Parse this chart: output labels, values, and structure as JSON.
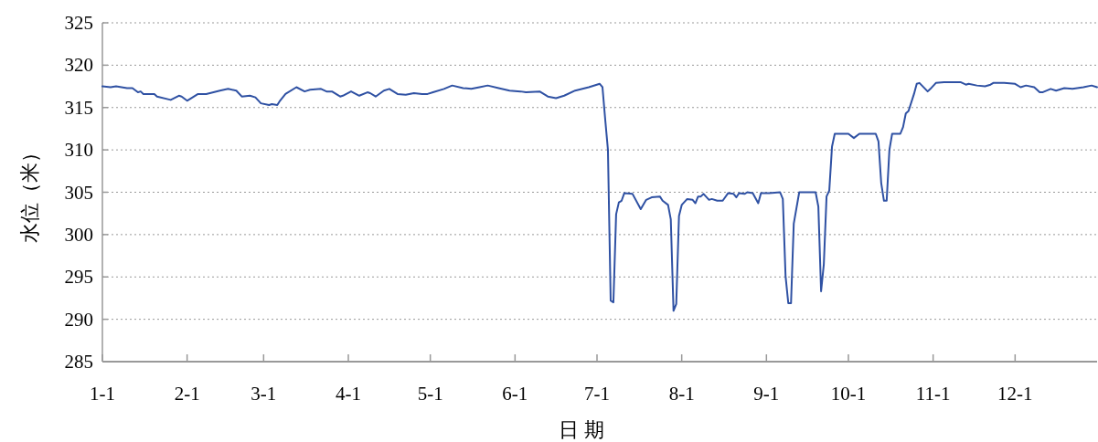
{
  "chart_data": {
    "type": "line",
    "xlabel": "日 期",
    "ylabel": "水位（米）",
    "color": "#2f51a3",
    "line_style": "solid",
    "grid": "y",
    "xlim": [
      "--01-01",
      "--12-31"
    ],
    "ylim": [
      285,
      325
    ],
    "yticks": [
      285,
      290,
      295,
      300,
      305,
      310,
      315,
      320,
      325
    ],
    "xticks": [
      {
        "value": "--01-01",
        "label": "1-1"
      },
      {
        "value": "--02-01",
        "label": "2-1"
      },
      {
        "value": "--03-01",
        "label": "3-1"
      },
      {
        "value": "--04-01",
        "label": "4-1"
      },
      {
        "value": "--05-01",
        "label": "5-1"
      },
      {
        "value": "--06-01",
        "label": "6-1"
      },
      {
        "value": "--07-01",
        "label": "7-1"
      },
      {
        "value": "--08-01",
        "label": "8-1"
      },
      {
        "value": "--09-01",
        "label": "9-1"
      },
      {
        "value": "--10-01",
        "label": "10-1"
      },
      {
        "value": "--11-01",
        "label": "11-1"
      },
      {
        "value": "--12-01",
        "label": "12-1"
      }
    ],
    "x": [
      "--01-01",
      "--01-04",
      "--01-06",
      "--01-10",
      "--01-12",
      "--01-14",
      "--01-15",
      "--01-16",
      "--01-20",
      "--01-21",
      "--01-26",
      "--01-29",
      "--01-30",
      "--02-01",
      "--02-05",
      "--02-08",
      "--02-13",
      "--02-16",
      "--02-19",
      "--02-21",
      "--02-24",
      "--02-26",
      "--02-28",
      "--03-03",
      "--03-04",
      "--03-06",
      "--03-07",
      "--03-09",
      "--03-13",
      "--03-16",
      "--03-18",
      "--03-22",
      "--03-24",
      "--03-26",
      "--03-29",
      "--03-30",
      "--04-02",
      "--04-05",
      "--04-08",
      "--04-09",
      "--04-11",
      "--04-14",
      "--04-16",
      "--04-19",
      "--04-22",
      "--04-25",
      "--04-28",
      "--04-30",
      "--05-02",
      "--05-06",
      "--05-09",
      "--05-13",
      "--05-16",
      "--05-19",
      "--05-22",
      "--05-26",
      "--05-30",
      "--06-03",
      "--06-05",
      "--06-10",
      "--06-13",
      "--06-16",
      "--06-19",
      "--06-23",
      "--06-28",
      "--07-02",
      "--07-03",
      "--07-04",
      "--07-05",
      "--07-06",
      "--07-07",
      "--07-08",
      "--07-09",
      "--07-10",
      "--07-11",
      "--07-14",
      "--07-17",
      "--07-19",
      "--07-21",
      "--07-24",
      "--07-25",
      "--07-27",
      "--07-28",
      "--07-29",
      "--07-30",
      "--07-31",
      "--08-01",
      "--08-03",
      "--08-05",
      "--08-06",
      "--08-07",
      "--08-08",
      "--08-09",
      "--08-11",
      "--08-12",
      "--08-14",
      "--08-16",
      "--08-18",
      "--08-20",
      "--08-21",
      "--08-22",
      "--08-24",
      "--08-25",
      "--08-27",
      "--08-29",
      "--08-30",
      "--09-02",
      "--09-06",
      "--09-07",
      "--09-08",
      "--09-09",
      "--09-10",
      "--09-11",
      "--09-13",
      "--09-19",
      "--09-20",
      "--09-21",
      "--09-22",
      "--09-23",
      "--09-24",
      "--09-25",
      "--09-26",
      "--10-01",
      "--10-03",
      "--10-05",
      "--10-11",
      "--10-12",
      "--10-13",
      "--10-14",
      "--10-15",
      "--10-16",
      "--10-17",
      "--10-20",
      "--10-21",
      "--10-22",
      "--10-23",
      "--10-25",
      "--10-26",
      "--10-27",
      "--10-30",
      "--10-31",
      "--11-02",
      "--11-05",
      "--11-11",
      "--11-13",
      "--11-14",
      "--11-17",
      "--11-20",
      "--11-22",
      "--11-23",
      "--11-27",
      "--12-01",
      "--12-03",
      "--12-05",
      "--12-08",
      "--12-10",
      "--12-11",
      "--12-14",
      "--12-16",
      "--12-19",
      "--12-22",
      "--12-26",
      "--12-29",
      "--12-31"
    ],
    "values": [
      317.5,
      317.4,
      317.5,
      317.3,
      317.3,
      316.8,
      316.9,
      316.6,
      316.6,
      316.3,
      315.9,
      316.4,
      316.3,
      315.8,
      316.6,
      316.6,
      317.0,
      317.2,
      317.0,
      316.3,
      316.4,
      316.2,
      315.5,
      315.3,
      315.4,
      315.3,
      315.8,
      316.6,
      317.4,
      316.9,
      317.1,
      317.2,
      316.9,
      316.9,
      316.3,
      316.4,
      316.9,
      316.4,
      316.8,
      316.7,
      316.3,
      317.0,
      317.2,
      316.6,
      316.5,
      316.7,
      316.6,
      316.6,
      316.8,
      317.2,
      317.6,
      317.3,
      317.2,
      317.4,
      317.6,
      317.3,
      317.0,
      316.9,
      316.8,
      316.9,
      316.3,
      316.1,
      316.4,
      317.0,
      317.4,
      317.8,
      317.4,
      313.6,
      310.0,
      292.2,
      292.0,
      302.4,
      303.8,
      304.0,
      304.9,
      304.8,
      303.0,
      304.1,
      304.4,
      304.5,
      304.0,
      303.5,
      301.8,
      291.0,
      291.8,
      302.2,
      303.5,
      304.2,
      304.1,
      303.7,
      304.5,
      304.5,
      304.8,
      304.1,
      304.2,
      304.0,
      304.0,
      304.9,
      304.8,
      304.4,
      304.9,
      304.8,
      305.0,
      304.9,
      303.7,
      304.9,
      304.9,
      305.0,
      304.2,
      295.1,
      291.9,
      291.9,
      301.3,
      305.0,
      305.0,
      303.3,
      293.3,
      296.5,
      304.5,
      305.2,
      310.4,
      311.9,
      311.9,
      311.4,
      311.9,
      311.9,
      311.0,
      306.1,
      304.0,
      304.0,
      310.0,
      311.9,
      311.9,
      312.7,
      314.3,
      314.6,
      316.6,
      317.8,
      317.9,
      316.9,
      317.2,
      317.9,
      318.0,
      318.0,
      317.7,
      317.8,
      317.6,
      317.5,
      317.7,
      317.9,
      317.9,
      317.8,
      317.4,
      317.6,
      317.4,
      316.8,
      316.8,
      317.2,
      317.0,
      317.3,
      317.2,
      317.4,
      317.6,
      317.4
    ]
  }
}
